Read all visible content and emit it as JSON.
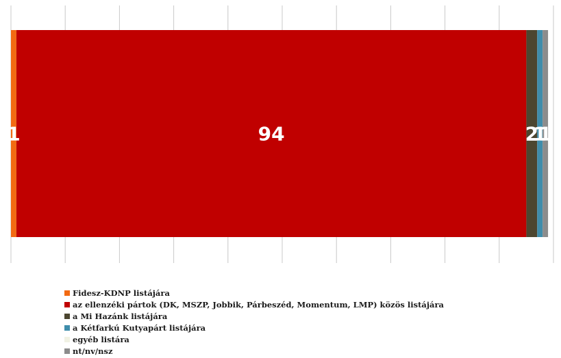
{
  "chart_data": {
    "type": "bar",
    "orientation": "horizontal",
    "stacked": true,
    "normalized": true,
    "xlim": [
      0,
      100
    ],
    "grid": true,
    "legend_position": "bottom",
    "x_ticks": [
      "0%",
      "10%",
      "20%",
      "30%",
      "40%",
      "50%",
      "60%",
      "70%",
      "80%",
      "90%",
      "100%"
    ],
    "series": [
      {
        "name": "Fidesz-KDNP listájára",
        "value": 1,
        "label": "1",
        "color": "#f26a12"
      },
      {
        "name": "az ellenzéki pártok (DK, MSZP, Jobbik, Párbeszéd, Momentum, LMP) közös listájára",
        "value": 94,
        "label": "94",
        "color": "#c00000"
      },
      {
        "name": "a Mi Hazánk listájára",
        "value": 2,
        "label": "2",
        "color": "#4c4630"
      },
      {
        "name": "a Kétfarkú Kutyapárt listájára",
        "value": 1,
        "label": "1",
        "color": "#3f8dab"
      },
      {
        "name": "egyéb listára",
        "value": 0,
        "label": "",
        "color": "#f1f2e4"
      },
      {
        "name": "nt/nv/nsz",
        "value": 1,
        "label": "1",
        "color": "#8c8c8c"
      }
    ]
  }
}
